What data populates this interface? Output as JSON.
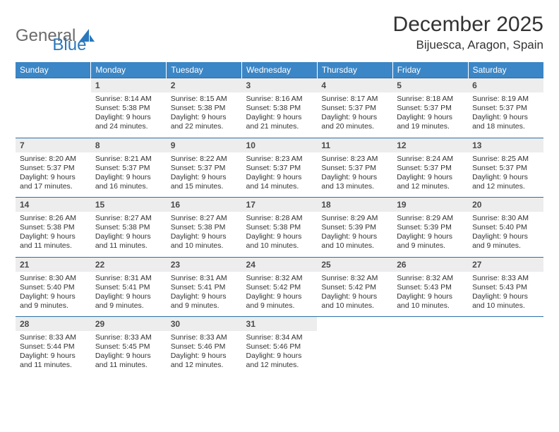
{
  "logo": {
    "word1": "General",
    "word2": "Blue",
    "color1": "#6b6b6b",
    "color2": "#2a78bd"
  },
  "title": "December 2025",
  "location": "Bijuesca, Aragon, Spain",
  "header_bg": "#3b86c6",
  "daynum_bg": "#ededed",
  "rule_color": "#2e6ea5",
  "weekdays": [
    "Sunday",
    "Monday",
    "Tuesday",
    "Wednesday",
    "Thursday",
    "Friday",
    "Saturday"
  ],
  "weeks": [
    [
      {
        "n": "",
        "sr": "",
        "ss": "",
        "dl": ""
      },
      {
        "n": "1",
        "sr": "Sunrise: 8:14 AM",
        "ss": "Sunset: 5:38 PM",
        "dl": "Daylight: 9 hours and 24 minutes."
      },
      {
        "n": "2",
        "sr": "Sunrise: 8:15 AM",
        "ss": "Sunset: 5:38 PM",
        "dl": "Daylight: 9 hours and 22 minutes."
      },
      {
        "n": "3",
        "sr": "Sunrise: 8:16 AM",
        "ss": "Sunset: 5:38 PM",
        "dl": "Daylight: 9 hours and 21 minutes."
      },
      {
        "n": "4",
        "sr": "Sunrise: 8:17 AM",
        "ss": "Sunset: 5:37 PM",
        "dl": "Daylight: 9 hours and 20 minutes."
      },
      {
        "n": "5",
        "sr": "Sunrise: 8:18 AM",
        "ss": "Sunset: 5:37 PM",
        "dl": "Daylight: 9 hours and 19 minutes."
      },
      {
        "n": "6",
        "sr": "Sunrise: 8:19 AM",
        "ss": "Sunset: 5:37 PM",
        "dl": "Daylight: 9 hours and 18 minutes."
      }
    ],
    [
      {
        "n": "7",
        "sr": "Sunrise: 8:20 AM",
        "ss": "Sunset: 5:37 PM",
        "dl": "Daylight: 9 hours and 17 minutes."
      },
      {
        "n": "8",
        "sr": "Sunrise: 8:21 AM",
        "ss": "Sunset: 5:37 PM",
        "dl": "Daylight: 9 hours and 16 minutes."
      },
      {
        "n": "9",
        "sr": "Sunrise: 8:22 AM",
        "ss": "Sunset: 5:37 PM",
        "dl": "Daylight: 9 hours and 15 minutes."
      },
      {
        "n": "10",
        "sr": "Sunrise: 8:23 AM",
        "ss": "Sunset: 5:37 PM",
        "dl": "Daylight: 9 hours and 14 minutes."
      },
      {
        "n": "11",
        "sr": "Sunrise: 8:23 AM",
        "ss": "Sunset: 5:37 PM",
        "dl": "Daylight: 9 hours and 13 minutes."
      },
      {
        "n": "12",
        "sr": "Sunrise: 8:24 AM",
        "ss": "Sunset: 5:37 PM",
        "dl": "Daylight: 9 hours and 12 minutes."
      },
      {
        "n": "13",
        "sr": "Sunrise: 8:25 AM",
        "ss": "Sunset: 5:37 PM",
        "dl": "Daylight: 9 hours and 12 minutes."
      }
    ],
    [
      {
        "n": "14",
        "sr": "Sunrise: 8:26 AM",
        "ss": "Sunset: 5:38 PM",
        "dl": "Daylight: 9 hours and 11 minutes."
      },
      {
        "n": "15",
        "sr": "Sunrise: 8:27 AM",
        "ss": "Sunset: 5:38 PM",
        "dl": "Daylight: 9 hours and 11 minutes."
      },
      {
        "n": "16",
        "sr": "Sunrise: 8:27 AM",
        "ss": "Sunset: 5:38 PM",
        "dl": "Daylight: 9 hours and 10 minutes."
      },
      {
        "n": "17",
        "sr": "Sunrise: 8:28 AM",
        "ss": "Sunset: 5:38 PM",
        "dl": "Daylight: 9 hours and 10 minutes."
      },
      {
        "n": "18",
        "sr": "Sunrise: 8:29 AM",
        "ss": "Sunset: 5:39 PM",
        "dl": "Daylight: 9 hours and 10 minutes."
      },
      {
        "n": "19",
        "sr": "Sunrise: 8:29 AM",
        "ss": "Sunset: 5:39 PM",
        "dl": "Daylight: 9 hours and 9 minutes."
      },
      {
        "n": "20",
        "sr": "Sunrise: 8:30 AM",
        "ss": "Sunset: 5:40 PM",
        "dl": "Daylight: 9 hours and 9 minutes."
      }
    ],
    [
      {
        "n": "21",
        "sr": "Sunrise: 8:30 AM",
        "ss": "Sunset: 5:40 PM",
        "dl": "Daylight: 9 hours and 9 minutes."
      },
      {
        "n": "22",
        "sr": "Sunrise: 8:31 AM",
        "ss": "Sunset: 5:41 PM",
        "dl": "Daylight: 9 hours and 9 minutes."
      },
      {
        "n": "23",
        "sr": "Sunrise: 8:31 AM",
        "ss": "Sunset: 5:41 PM",
        "dl": "Daylight: 9 hours and 9 minutes."
      },
      {
        "n": "24",
        "sr": "Sunrise: 8:32 AM",
        "ss": "Sunset: 5:42 PM",
        "dl": "Daylight: 9 hours and 9 minutes."
      },
      {
        "n": "25",
        "sr": "Sunrise: 8:32 AM",
        "ss": "Sunset: 5:42 PM",
        "dl": "Daylight: 9 hours and 10 minutes."
      },
      {
        "n": "26",
        "sr": "Sunrise: 8:32 AM",
        "ss": "Sunset: 5:43 PM",
        "dl": "Daylight: 9 hours and 10 minutes."
      },
      {
        "n": "27",
        "sr": "Sunrise: 8:33 AM",
        "ss": "Sunset: 5:43 PM",
        "dl": "Daylight: 9 hours and 10 minutes."
      }
    ],
    [
      {
        "n": "28",
        "sr": "Sunrise: 8:33 AM",
        "ss": "Sunset: 5:44 PM",
        "dl": "Daylight: 9 hours and 11 minutes."
      },
      {
        "n": "29",
        "sr": "Sunrise: 8:33 AM",
        "ss": "Sunset: 5:45 PM",
        "dl": "Daylight: 9 hours and 11 minutes."
      },
      {
        "n": "30",
        "sr": "Sunrise: 8:33 AM",
        "ss": "Sunset: 5:46 PM",
        "dl": "Daylight: 9 hours and 12 minutes."
      },
      {
        "n": "31",
        "sr": "Sunrise: 8:34 AM",
        "ss": "Sunset: 5:46 PM",
        "dl": "Daylight: 9 hours and 12 minutes."
      },
      {
        "n": "",
        "sr": "",
        "ss": "",
        "dl": ""
      },
      {
        "n": "",
        "sr": "",
        "ss": "",
        "dl": ""
      },
      {
        "n": "",
        "sr": "",
        "ss": "",
        "dl": ""
      }
    ]
  ]
}
